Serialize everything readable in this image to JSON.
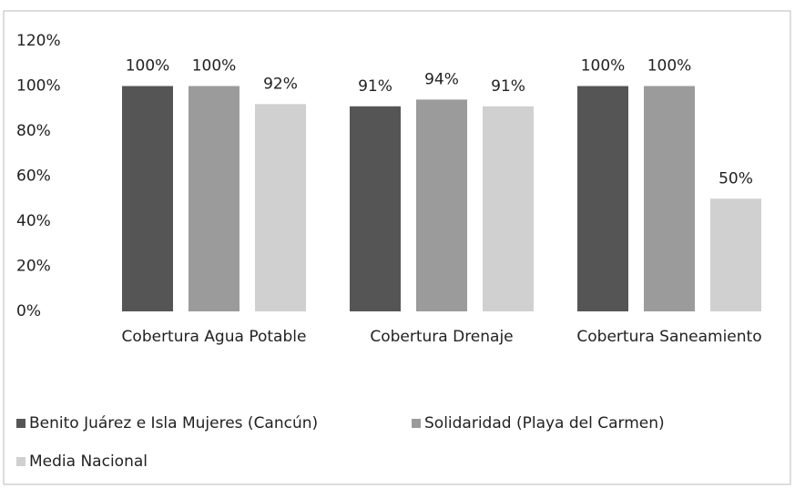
{
  "chart_data": {
    "type": "bar",
    "categories": [
      "Cobertura Agua Potable",
      "Cobertura Drenaje",
      "Cobertura Saneamiento"
    ],
    "series": [
      {
        "name": "Benito Juárez e Isla Mujeres (Cancún)",
        "color": "#555555",
        "values": [
          100,
          91,
          100
        ],
        "value_labels": [
          "100%",
          "91%",
          "100%"
        ]
      },
      {
        "name": "Solidaridad (Playa del Carmen)",
        "color": "#9b9b9b",
        "values": [
          100,
          94,
          100
        ],
        "value_labels": [
          "100%",
          "94%",
          "100%"
        ]
      },
      {
        "name": "Media Nacional",
        "color": "#d0d0d0",
        "values": [
          92,
          91,
          50
        ],
        "value_labels": [
          "92%",
          "91%",
          "50%"
        ]
      }
    ],
    "ylim": [
      0,
      120
    ],
    "yticks": [
      {
        "value": 0,
        "label": "0%"
      },
      {
        "value": 20,
        "label": "20%"
      },
      {
        "value": 40,
        "label": "40%"
      },
      {
        "value": 60,
        "label": "60%"
      },
      {
        "value": 80,
        "label": "80%"
      },
      {
        "value": 100,
        "label": "100%"
      },
      {
        "value": 120,
        "label": "120%"
      }
    ],
    "grid": false,
    "legend": "bottom"
  }
}
